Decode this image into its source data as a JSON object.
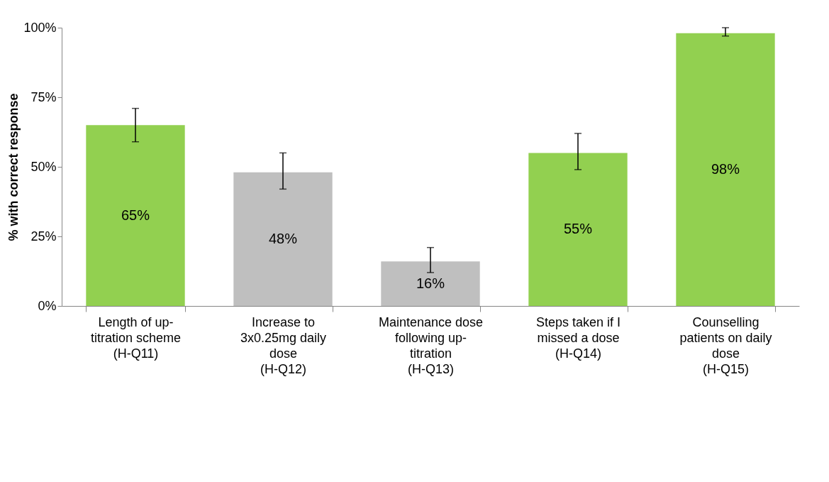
{
  "chart_data": {
    "type": "bar",
    "ylabel": "% with correct response",
    "categories": [
      "Length of up-titration scheme (H-Q11)",
      "Increase to 3x0.25mg daily dose (H-Q12)",
      "Maintenance dose following up-titration (H-Q13)",
      "Steps taken if I missed a dose (H-Q14)",
      "Counselling patients on daily dose (H-Q15)"
    ],
    "values": [
      65,
      48,
      16,
      55,
      98
    ],
    "colors": [
      "#92d050",
      "#bfbfbf",
      "#bfbfbf",
      "#92d050",
      "#92d050"
    ],
    "errors": [
      [
        59,
        71
      ],
      [
        42,
        55
      ],
      [
        12,
        21
      ],
      [
        49,
        62
      ],
      [
        97,
        100
      ]
    ],
    "value_labels": [
      "65%",
      "48%",
      "16%",
      "55%",
      "98%"
    ],
    "ylim": [
      0,
      100
    ],
    "yticks": [
      {
        "value": 0,
        "label": "0%"
      },
      {
        "value": 25,
        "label": "25%"
      },
      {
        "value": 50,
        "label": "50%"
      },
      {
        "value": 75,
        "label": "75%"
      },
      {
        "value": 100,
        "label": "100%"
      }
    ],
    "grid": false
  }
}
